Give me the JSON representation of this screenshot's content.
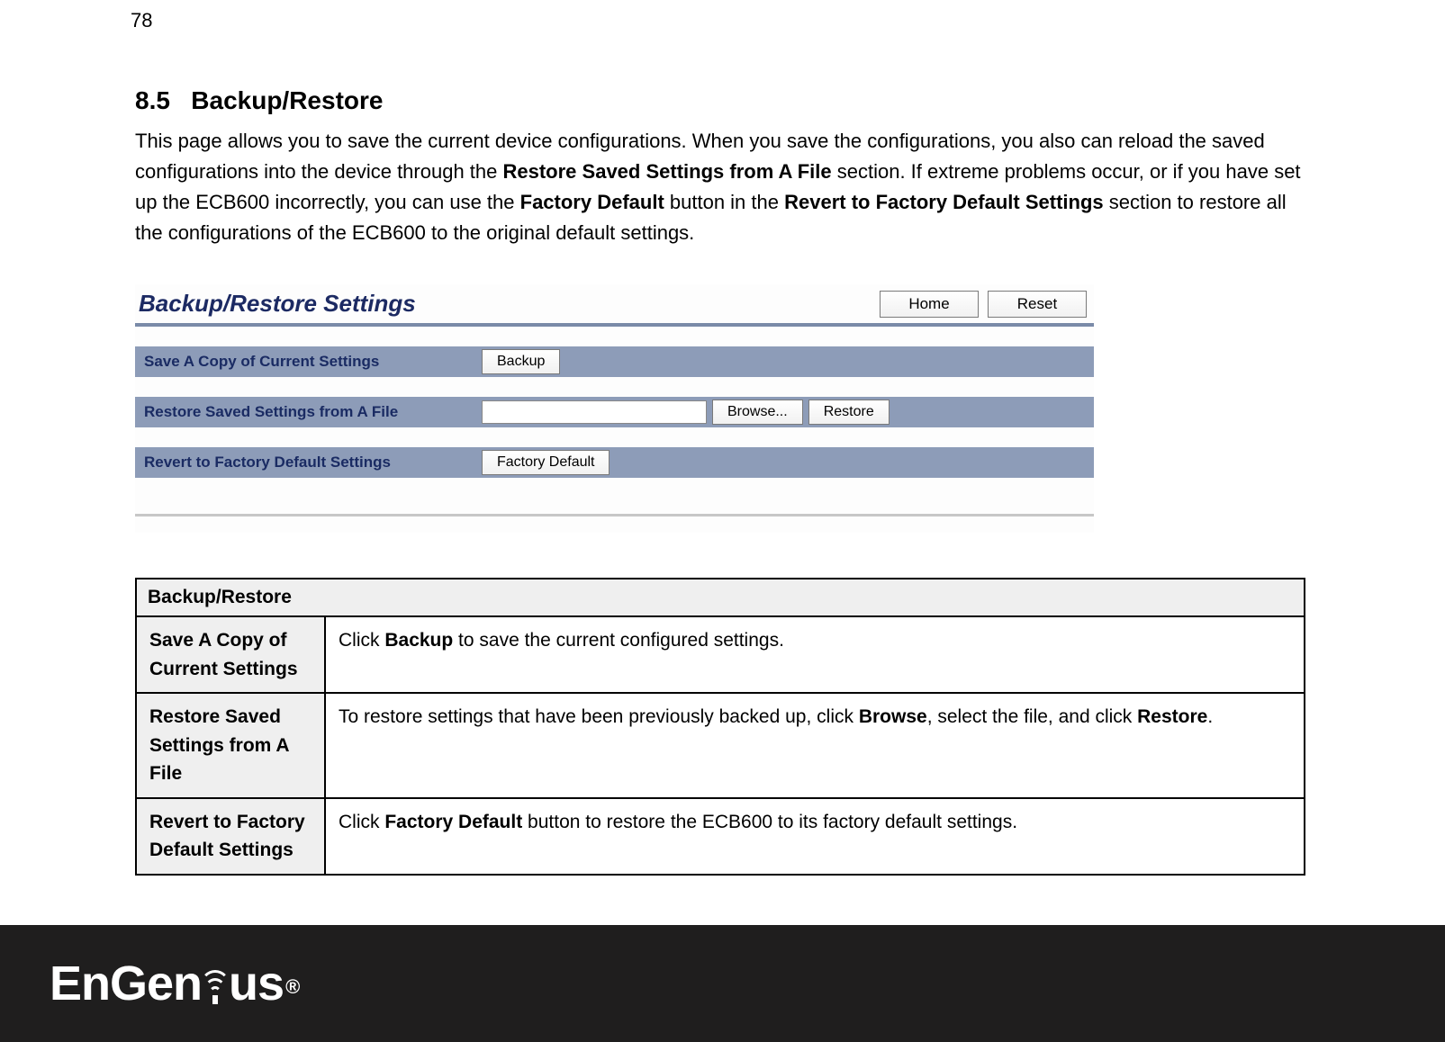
{
  "page_number": "78",
  "section_number": "8.5",
  "section_title": "Backup/Restore",
  "intro": {
    "t1": "This page allows you to save the current device configurations. When you save the configurations, you also can reload the saved configurations into the device through the ",
    "b1": "Restore Saved Settings from A File",
    "t2": " section. If extreme problems occur, or if you have set up the ECB600 incorrectly, you can use the ",
    "b2": "Factory Default",
    "t3": " button in the ",
    "b3": "Revert to Factory Default Settings",
    "t4": " section to restore all the configurations of the ECB600 to the original default settings."
  },
  "ui": {
    "panel_title": "Backup/Restore Settings",
    "home_btn": "Home",
    "reset_btn": "Reset",
    "rows": {
      "save": {
        "label": "Save A Copy of Current Settings",
        "button": "Backup"
      },
      "restore": {
        "label": "Restore Saved Settings from A File",
        "browse": "Browse...",
        "button": "Restore"
      },
      "revert": {
        "label": "Revert to Factory Default Settings",
        "button": "Factory Default"
      }
    },
    "colors": {
      "row_bg": "#8d9cb8",
      "row_label": "#1a2b63",
      "header_rule": "#7a8aa8",
      "title_color": "#1c2a63"
    }
  },
  "table": {
    "header": "Backup/Restore",
    "rows": [
      {
        "key": "Save A Copy of Current Settings",
        "d1": "Click ",
        "b1": "Backup",
        "d2": " to save the current configured settings."
      },
      {
        "key": "Restore Saved Settings from A File",
        "d1": "To restore settings that have been previously backed up, click ",
        "b1": "Browse",
        "d2": ", select the file, and click ",
        "b2": "Restore",
        "d3": "."
      },
      {
        "key": "Revert to Factory Default Settings",
        "d1": "Click ",
        "b1": "Factory Default",
        "d2": " button to restore the ECB600 to its factory default settings."
      }
    ]
  },
  "footer": {
    "logo_part1": "EnGen",
    "logo_part2": "us",
    "reg": "®"
  }
}
